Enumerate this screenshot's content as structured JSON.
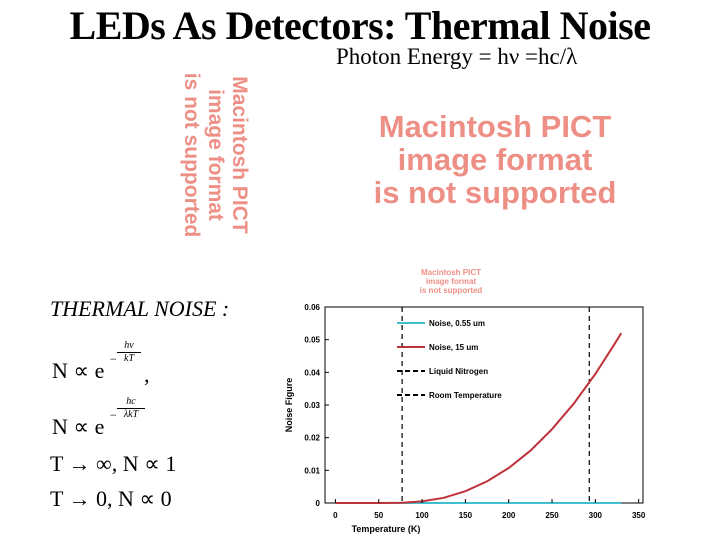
{
  "slide": {
    "title": "LEDs As Detectors: Thermal Noise",
    "photon_energy": "Photon Energy = hν =hc/λ",
    "pict_placeholder": [
      "Macintosh PICT",
      "image format",
      "is not supported"
    ],
    "thermal_label": "THERMAL NOISE :",
    "eq1": {
      "lhs": "N ∝ e",
      "exp_top": "hν",
      "exp_bottom": "kT",
      "minus": "−",
      "tail": ","
    },
    "eq2": {
      "lhs": "N ∝ e",
      "exp_top": "hc",
      "exp_bottom": "λkT",
      "minus": "−"
    },
    "eq3": "T → ∞, N ∝ 1",
    "eq4": "T → 0, N ∝ 0"
  },
  "colors": {
    "pict_text": "#ee8f86",
    "series_055": "#3fbfd0",
    "series_15": "#c0323a",
    "reference_lines": "#000000"
  },
  "chart_data": {
    "type": "line",
    "xlabel": "Temperature (K)",
    "ylabel": "Noise Figure",
    "xlim": [
      0,
      350
    ],
    "ylim": [
      0,
      0.06
    ],
    "xticks": [
      0,
      50,
      100,
      150,
      200,
      250,
      300,
      350
    ],
    "yticks": [
      0,
      0.01,
      0.02,
      0.03,
      0.04,
      0.05,
      0.06
    ],
    "xtick_labels": [
      "0",
      "50",
      "100",
      "150",
      "200",
      "250",
      "300",
      "350"
    ],
    "ytick_labels": [
      "0",
      "0.01",
      "0.02",
      "0.03",
      "0.04",
      "0.05",
      "0.06"
    ],
    "legend_position": "top-left",
    "grid": false,
    "series": [
      {
        "name": "Noise, 0.55 um",
        "x": [
          0,
          50,
          100,
          150,
          200,
          250,
          300,
          330
        ],
        "values": [
          0,
          0,
          0,
          0,
          0,
          0,
          0,
          0
        ]
      },
      {
        "name": "Noise, 15 um",
        "x": [
          0,
          50,
          77,
          100,
          125,
          150,
          175,
          200,
          225,
          250,
          275,
          300,
          320,
          330
        ],
        "values": [
          0,
          0,
          0.0001,
          0.0005,
          0.0016,
          0.0036,
          0.0066,
          0.0107,
          0.016,
          0.0226,
          0.0304,
          0.0395,
          0.0478,
          0.052
        ]
      }
    ],
    "reference_lines": [
      {
        "name": "Liquid Nitrogen",
        "x": 77
      },
      {
        "name": "Room Temperature",
        "x": 293
      }
    ]
  }
}
